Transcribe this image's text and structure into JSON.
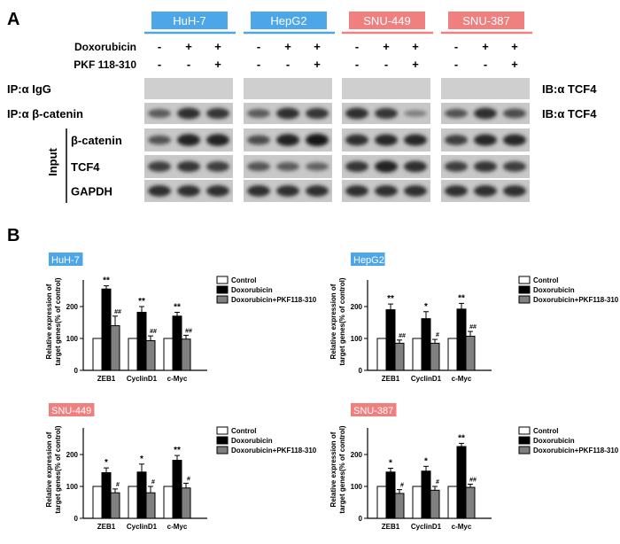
{
  "panel_a": {
    "letter": "A",
    "cell_lines": [
      {
        "name": "HuH-7",
        "color": "#4da6e8"
      },
      {
        "name": "HepG2",
        "color": "#4da6e8"
      },
      {
        "name": "SNU-449",
        "color": "#f08080"
      },
      {
        "name": "SNU-387",
        "color": "#f08080"
      }
    ],
    "treatments": [
      {
        "label": "Doxorubicin",
        "signs": [
          "-",
          "+",
          "+"
        ]
      },
      {
        "label": "PKF 118-310",
        "signs": [
          "-",
          "-",
          "+"
        ]
      }
    ],
    "blots": [
      {
        "left_label": "IP:α IgG",
        "right_label": "IB:α TCF4",
        "band": [
          0,
          0,
          0,
          0,
          0,
          0,
          0,
          0,
          0,
          0,
          0,
          0
        ]
      },
      {
        "left_label": "IP:α  β-catenin",
        "right_label": "IB:α TCF4",
        "band": [
          0.55,
          0.85,
          0.8,
          0.55,
          0.85,
          0.8,
          0.85,
          0.8,
          0.3,
          0.6,
          0.85,
          0.65
        ]
      },
      {
        "left_label": "β-catenin",
        "right_label": "",
        "band": [
          0.6,
          0.95,
          0.95,
          0.65,
          0.95,
          1.0,
          0.85,
          0.9,
          0.9,
          0.75,
          0.9,
          0.9
        ]
      },
      {
        "left_label": "TCF4",
        "right_label": "",
        "band": [
          0.75,
          0.8,
          0.75,
          0.6,
          0.55,
          0.5,
          0.8,
          0.95,
          0.85,
          0.75,
          0.8,
          0.75
        ]
      },
      {
        "left_label": "GAPDH",
        "right_label": "",
        "band": [
          0.85,
          0.85,
          0.85,
          0.85,
          0.85,
          0.85,
          0.85,
          0.85,
          0.85,
          0.85,
          0.85,
          0.85
        ]
      }
    ],
    "input_group_label": "Input"
  },
  "panel_b": {
    "letter": "B",
    "ylabel": "Relative expression of target genes(% of control)",
    "legend": [
      "Control",
      "Doxorubicin",
      "Doxorubicin+PKF118-310"
    ],
    "colors": {
      "Control": "#ffffff",
      "Doxorubicin": "#000000",
      "Doxorubicin+PKF118-310": "#808080"
    }
  },
  "chart_data": [
    {
      "type": "bar",
      "title": "HuH-7",
      "title_color": "#4da6e8",
      "categories": [
        "ZEB1",
        "CyclinD1",
        "c-Myc"
      ],
      "ylabel": "Relative expression of target genes(% of control)",
      "ylim": [
        0,
        300
      ],
      "yticks": [
        0,
        100,
        200
      ],
      "series": [
        {
          "name": "Control",
          "values": [
            100,
            100,
            100
          ],
          "errors": [
            0,
            0,
            0
          ],
          "sig": [
            "",
            "",
            ""
          ]
        },
        {
          "name": "Doxorubicin",
          "values": [
            255,
            182,
            170
          ],
          "errors": [
            10,
            18,
            12
          ],
          "sig": [
            "**",
            "**",
            "**"
          ]
        },
        {
          "name": "Doxorubicin+PKF118-310",
          "values": [
            140,
            93,
            98
          ],
          "errors": [
            30,
            15,
            12
          ],
          "sig": [
            "##",
            "##",
            "##"
          ]
        }
      ]
    },
    {
      "type": "bar",
      "title": "HepG2",
      "title_color": "#4da6e8",
      "categories": [
        "ZEB1",
        "CyclinD1",
        "c-Myc"
      ],
      "ylabel": "Relative expression of target genes(% of control)",
      "ylim": [
        0,
        300
      ],
      "yticks": [
        0,
        100,
        200
      ],
      "series": [
        {
          "name": "Control",
          "values": [
            100,
            100,
            100
          ],
          "errors": [
            0,
            0,
            0
          ],
          "sig": [
            "",
            "",
            ""
          ]
        },
        {
          "name": "Doxorubicin",
          "values": [
            190,
            162,
            192
          ],
          "errors": [
            18,
            22,
            18
          ],
          "sig": [
            "**",
            "*",
            "**"
          ]
        },
        {
          "name": "Doxorubicin+PKF118-310",
          "values": [
            85,
            85,
            107
          ],
          "errors": [
            10,
            12,
            15
          ],
          "sig": [
            "##",
            "#",
            "##"
          ]
        }
      ]
    },
    {
      "type": "bar",
      "title": "SNU-449",
      "title_color": "#f08080",
      "categories": [
        "ZEB1",
        "CyclinD1",
        "c-Myc"
      ],
      "ylabel": "Relative expression of target genes(% of control)",
      "ylim": [
        0,
        300
      ],
      "yticks": [
        0,
        100,
        200
      ],
      "series": [
        {
          "name": "Control",
          "values": [
            100,
            100,
            100
          ],
          "errors": [
            0,
            0,
            0
          ],
          "sig": [
            "",
            "",
            ""
          ]
        },
        {
          "name": "Doxorubicin",
          "values": [
            143,
            145,
            182
          ],
          "errors": [
            15,
            25,
            15
          ],
          "sig": [
            "*",
            "*",
            "**"
          ]
        },
        {
          "name": "Doxorubicin+PKF118-310",
          "values": [
            80,
            80,
            95
          ],
          "errors": [
            12,
            20,
            15
          ],
          "sig": [
            "#",
            "#",
            "#"
          ]
        }
      ]
    },
    {
      "type": "bar",
      "title": "SNU-387",
      "title_color": "#f08080",
      "categories": [
        "ZEB1",
        "CyclinD1",
        "c-Myc"
      ],
      "ylabel": "Relative expression of target genes(% of control)",
      "ylim": [
        0,
        300
      ],
      "yticks": [
        0,
        100,
        200
      ],
      "series": [
        {
          "name": "Control",
          "values": [
            100,
            100,
            100
          ],
          "errors": [
            0,
            0,
            0
          ],
          "sig": [
            "",
            "",
            ""
          ]
        },
        {
          "name": "Doxorubicin",
          "values": [
            145,
            148,
            225
          ],
          "errors": [
            12,
            15,
            10
          ],
          "sig": [
            "*",
            "*",
            "**"
          ]
        },
        {
          "name": "Doxorubicin+PKF118-310",
          "values": [
            78,
            88,
            97
          ],
          "errors": [
            12,
            12,
            10
          ],
          "sig": [
            "#",
            "#",
            "##"
          ]
        }
      ]
    }
  ]
}
